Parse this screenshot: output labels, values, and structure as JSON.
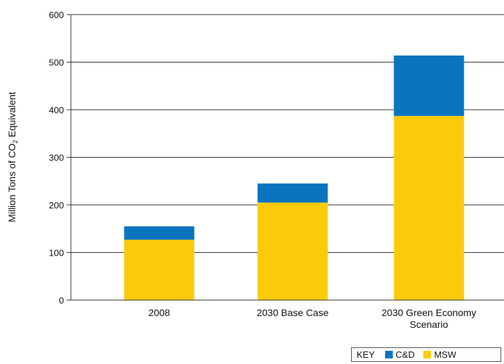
{
  "chart_data": {
    "type": "bar",
    "stacked": true,
    "categories": [
      "2008",
      "2030 Base Case",
      "2030 Green Economy Scenario"
    ],
    "category_lines": [
      [
        "2008"
      ],
      [
        "2030 Base Case"
      ],
      [
        "2030 Green Economy",
        "Scenario"
      ]
    ],
    "series": [
      {
        "name": "MSW",
        "color": "#fbcb0b",
        "values": [
          127,
          205,
          387
        ]
      },
      {
        "name": "C&D",
        "color": "#0a74bf",
        "values": [
          28,
          40,
          127
        ]
      }
    ],
    "ylabel_main": "Million Tons of CO",
    "ylabel_sub": "2",
    "ylabel_end": " Equivalent",
    "ylim": [
      0,
      600
    ],
    "yticks": [
      0,
      100,
      200,
      300,
      400,
      500,
      600
    ],
    "grid": true,
    "legend": {
      "title": "KEY",
      "placement": "bottom-right"
    }
  }
}
